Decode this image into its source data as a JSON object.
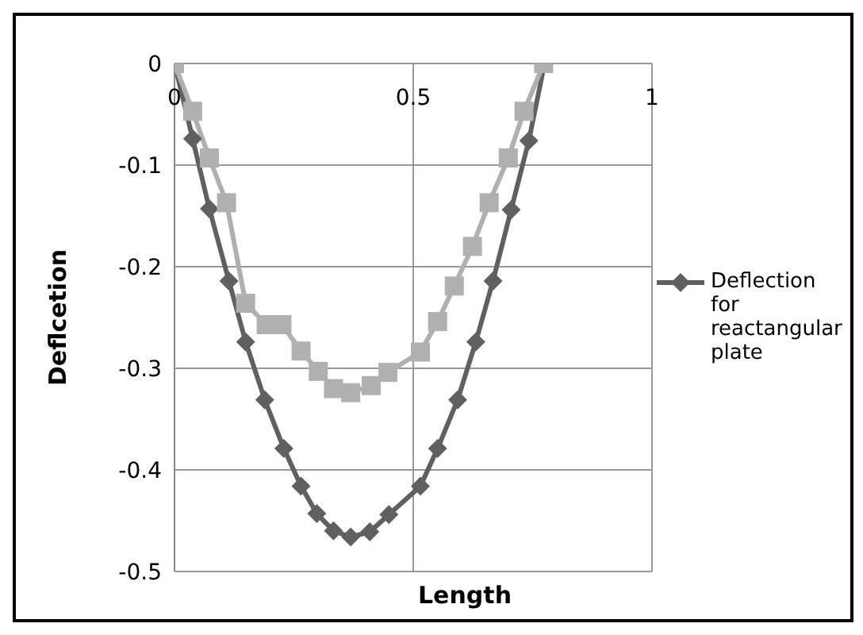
{
  "chart_data": {
    "type": "line",
    "xlabel": "Length",
    "ylabel": "Deflcetion",
    "xlim": [
      0,
      1
    ],
    "xticks": [
      0,
      0.5,
      1
    ],
    "ylim": [
      -0.5,
      0
    ],
    "yticks": [
      0,
      -0.1,
      -0.2,
      -0.3,
      -0.4,
      -0.5
    ],
    "grid": true,
    "legend": "right",
    "series": [
      {
        "name": "Deflection for reactangular plate",
        "color": "#606060",
        "marker": "diamond",
        "x": [
          0,
          0.038,
          0.073,
          0.114,
          0.149,
          0.189,
          0.229,
          0.265,
          0.298,
          0.333,
          0.369,
          0.409,
          0.449,
          0.515,
          0.551,
          0.593,
          0.631,
          0.667,
          0.705,
          0.742,
          0.775
        ],
        "values": [
          0,
          -0.074,
          -0.143,
          -0.214,
          -0.274,
          -0.331,
          -0.379,
          -0.416,
          -0.443,
          -0.46,
          -0.466,
          -0.461,
          -0.444,
          -0.416,
          -0.379,
          -0.331,
          -0.274,
          -0.214,
          -0.144,
          -0.076,
          0
        ]
      },
      {
        "color": "#b0b0b0",
        "marker": "square",
        "x": [
          0,
          0.038,
          0.073,
          0.109,
          0.149,
          0.192,
          0.225,
          0.265,
          0.301,
          0.333,
          0.369,
          0.412,
          0.447,
          0.515,
          0.551,
          0.586,
          0.624,
          0.659,
          0.699,
          0.732,
          0.773
        ],
        "values": [
          0,
          -0.047,
          -0.093,
          -0.137,
          -0.236,
          -0.257,
          -0.257,
          -0.283,
          -0.303,
          -0.32,
          -0.324,
          -0.317,
          -0.304,
          -0.284,
          -0.254,
          -0.219,
          -0.18,
          -0.137,
          -0.093,
          -0.047,
          0
        ]
      }
    ]
  }
}
